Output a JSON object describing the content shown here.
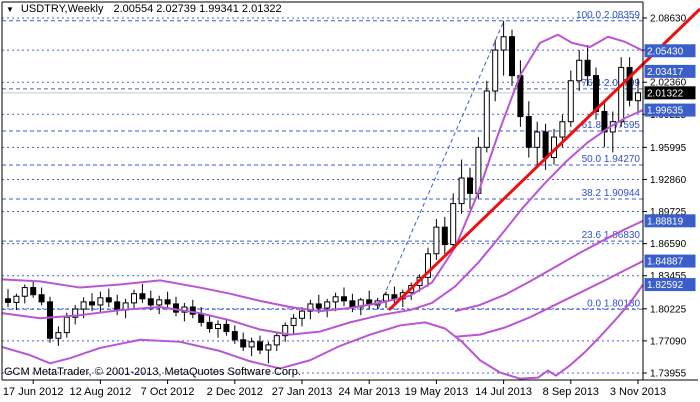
{
  "title": {
    "symbol_period": "USDTRY,Weekly",
    "ohlc": "2.00554 2.02739 1.99341 2.01322"
  },
  "watermark": "GCM MetaTrader, © 2001-2013, MetaQuotes Software Corp.",
  "colors": {
    "background": "#ffffff",
    "frame": "#000000",
    "grid": "#4466cc",
    "fib_line": "#3a5fd0",
    "fib_text": "#3050c8",
    "bands": "#ba55d3",
    "trendline": "#ee1010",
    "current_price_line": "#c8c8c8",
    "badge_blue": "#3a5fcb",
    "badge_black": "#000000",
    "candle_up_fill": "#ffffff",
    "candle_down_fill": "#000000",
    "candle_stroke": "#000000"
  },
  "chart_data": {
    "type": "candlestick",
    "symbol": "USDTRY",
    "period": "Weekly",
    "current_price": "2.01322",
    "y_ticks": [
      "2.08630",
      "2.05495",
      "2.02360",
      "1.99225",
      "1.95995",
      "1.92860",
      "1.89725",
      "1.86590",
      "1.83455",
      "1.80225",
      "1.77090",
      "1.73955"
    ],
    "x_ticks": [
      {
        "label": "17 Jun 2012",
        "i": 3
      },
      {
        "label": "12 Aug 2012",
        "i": 11
      },
      {
        "label": "7 Oct 2012",
        "i": 19
      },
      {
        "label": "2 Dec 2012",
        "i": 27
      },
      {
        "label": "27 Jan 2013",
        "i": 35
      },
      {
        "label": "24 Mar 2013",
        "i": 43
      },
      {
        "label": "19 May 2013",
        "i": 51
      },
      {
        "label": "14 Jul 2013",
        "i": 59
      },
      {
        "label": "8 Sep 2013",
        "i": 67
      },
      {
        "label": "3 Nov 2013",
        "i": 75
      }
    ],
    "axis_badges": [
      {
        "value": "2.05430",
        "bg": "blue"
      },
      {
        "value": "2.03417",
        "bg": "blue"
      },
      {
        "value": "2.01322",
        "bg": "black"
      },
      {
        "value": "1.99635",
        "bg": "blue"
      },
      {
        "value": "1.88819",
        "bg": "blue"
      },
      {
        "value": "1.84887",
        "bg": "blue"
      },
      {
        "value": "1.82592",
        "bg": "blue"
      }
    ],
    "fibonacci": [
      {
        "level": "100.0",
        "price": "2.08359"
      },
      {
        "level": "76.4",
        "price": "2.01709"
      },
      {
        "level": "61.8",
        "price": "1.97595"
      },
      {
        "level": "50.0",
        "price": "1.94270"
      },
      {
        "level": "38.2",
        "price": "1.90944"
      },
      {
        "level": "23.6",
        "price": "1.86830"
      },
      {
        "level": "0.0",
        "price": "1.80180"
      }
    ],
    "fib_baseline": {
      "from": [
        378,
        1.8018
      ],
      "to": [
        504,
        2.08359
      ]
    },
    "trendline": {
      "from": [
        389,
        1.8011
      ],
      "to": [
        700,
        2.0951
      ]
    },
    "candles": [
      [
        1.812,
        1.8215,
        1.804,
        1.8085
      ],
      [
        1.8085,
        1.817,
        1.801,
        1.8145
      ],
      [
        1.8145,
        1.826,
        1.8075,
        1.823
      ],
      [
        1.823,
        1.8295,
        1.813,
        1.816
      ],
      [
        1.816,
        1.823,
        1.8055,
        1.809
      ],
      [
        1.809,
        1.814,
        1.769,
        1.7735
      ],
      [
        1.7735,
        1.785,
        1.766,
        1.779
      ],
      [
        1.779,
        1.7985,
        1.774,
        1.794
      ],
      [
        1.794,
        1.806,
        1.787,
        1.802
      ],
      [
        1.802,
        1.8135,
        1.793,
        1.809
      ],
      [
        1.809,
        1.8175,
        1.8,
        1.806
      ],
      [
        1.806,
        1.819,
        1.798,
        1.813
      ],
      [
        1.813,
        1.822,
        1.804,
        1.809
      ],
      [
        1.809,
        1.816,
        1.796,
        1.801
      ],
      [
        1.801,
        1.812,
        1.793,
        1.808
      ],
      [
        1.808,
        1.821,
        1.802,
        1.817
      ],
      [
        1.817,
        1.8265,
        1.808,
        1.812
      ],
      [
        1.812,
        1.82,
        1.801,
        1.806
      ],
      [
        1.806,
        1.815,
        1.797,
        1.811
      ],
      [
        1.811,
        1.819,
        1.802,
        1.807
      ],
      [
        1.807,
        1.814,
        1.795,
        1.799
      ],
      [
        1.799,
        1.808,
        1.79,
        1.804
      ],
      [
        1.804,
        1.811,
        1.793,
        1.797
      ],
      [
        1.797,
        1.804,
        1.785,
        1.789
      ],
      [
        1.789,
        1.796,
        1.779,
        1.783
      ],
      [
        1.783,
        1.791,
        1.774,
        1.787
      ],
      [
        1.787,
        1.793,
        1.776,
        1.78
      ],
      [
        1.78,
        1.786,
        1.768,
        1.772
      ],
      [
        1.772,
        1.779,
        1.761,
        1.765
      ],
      [
        1.765,
        1.774,
        1.756,
        1.77
      ],
      [
        1.77,
        1.776,
        1.758,
        1.762
      ],
      [
        1.762,
        1.77,
        1.749,
        1.767
      ],
      [
        1.767,
        1.779,
        1.761,
        1.776
      ],
      [
        1.776,
        1.789,
        1.77,
        1.786
      ],
      [
        1.786,
        1.797,
        1.778,
        1.793
      ],
      [
        1.793,
        1.804,
        1.785,
        1.8
      ],
      [
        1.8,
        1.811,
        1.792,
        1.807
      ],
      [
        1.807,
        1.816,
        1.798,
        1.803
      ],
      [
        1.803,
        1.812,
        1.794,
        1.809
      ],
      [
        1.809,
        1.818,
        1.8,
        1.814
      ],
      [
        1.814,
        1.823,
        1.805,
        1.81
      ],
      [
        1.81,
        1.817,
        1.799,
        1.804
      ],
      [
        1.804,
        1.813,
        1.796,
        1.811
      ],
      [
        1.811,
        1.82,
        1.802,
        1.806
      ],
      [
        1.806,
        1.813,
        1.8018,
        1.81
      ],
      [
        1.81,
        1.819,
        1.803,
        1.816
      ],
      [
        1.816,
        1.824,
        1.808,
        1.812
      ],
      [
        1.812,
        1.821,
        1.804,
        1.818
      ],
      [
        1.818,
        1.828,
        1.811,
        1.825
      ],
      [
        1.825,
        1.836,
        1.819,
        1.833
      ],
      [
        1.833,
        1.862,
        1.824,
        1.856
      ],
      [
        1.856,
        1.89,
        1.85,
        1.882
      ],
      [
        1.882,
        1.892,
        1.856,
        1.865
      ],
      [
        1.865,
        1.915,
        1.86,
        1.905
      ],
      [
        1.905,
        1.948,
        1.895,
        1.93
      ],
      [
        1.93,
        1.94,
        1.9,
        1.915
      ],
      [
        1.915,
        1.97,
        1.91,
        1.96
      ],
      [
        1.96,
        2.025,
        1.955,
        2.015
      ],
      [
        2.015,
        2.065,
        2.005,
        2.055
      ],
      [
        2.055,
        2.08359,
        2.03,
        2.068
      ],
      [
        2.068,
        2.075,
        2.02,
        2.03
      ],
      [
        2.03,
        2.045,
        1.98,
        1.99
      ],
      [
        1.99,
        2.005,
        1.95,
        1.96
      ],
      [
        1.96,
        1.985,
        1.9427,
        1.975
      ],
      [
        1.975,
        1.983,
        1.938,
        1.95
      ],
      [
        1.95,
        1.978,
        1.943,
        1.97
      ],
      [
        1.97,
        1.992,
        1.96,
        1.985
      ],
      [
        1.985,
        2.035,
        1.98,
        2.025
      ],
      [
        2.025,
        2.055,
        2.015,
        2.045
      ],
      [
        2.045,
        2.06,
        2.02,
        2.03
      ],
      [
        2.03,
        2.038,
        1.987,
        1.995
      ],
      [
        1.995,
        2.005,
        1.96,
        1.975
      ],
      [
        1.975,
        1.995,
        1.955,
        1.985
      ],
      [
        1.985,
        2.048,
        1.98,
        2.038
      ],
      [
        2.038,
        2.048,
        2.0,
        2.006
      ],
      [
        2.00554,
        2.02739,
        1.99341,
        2.01322
      ]
    ],
    "bands": {
      "upper": [
        [
          2,
          1.831
        ],
        [
          40,
          1.829
        ],
        [
          80,
          1.823
        ],
        [
          120,
          1.826
        ],
        [
          160,
          1.83
        ],
        [
          200,
          1.823
        ],
        [
          230,
          1.817
        ],
        [
          260,
          1.81
        ],
        [
          290,
          1.804
        ],
        [
          320,
          1.8
        ],
        [
          350,
          1.803
        ],
        [
          380,
          1.808
        ],
        [
          410,
          1.815
        ],
        [
          432,
          1.828
        ],
        [
          455,
          1.862
        ],
        [
          478,
          1.915
        ],
        [
          500,
          1.978
        ],
        [
          520,
          2.03
        ],
        [
          540,
          2.062
        ],
        [
          558,
          2.07
        ],
        [
          572,
          2.062
        ],
        [
          590,
          2.058
        ],
        [
          608,
          2.068
        ],
        [
          625,
          2.063
        ],
        [
          643,
          2.0543
        ]
      ],
      "middle": [
        [
          2,
          1.798
        ],
        [
          40,
          1.793
        ],
        [
          80,
          1.796
        ],
        [
          120,
          1.801
        ],
        [
          160,
          1.804
        ],
        [
          200,
          1.798
        ],
        [
          230,
          1.791
        ],
        [
          260,
          1.782
        ],
        [
          290,
          1.777
        ],
        [
          320,
          1.78
        ],
        [
          350,
          1.789
        ],
        [
          380,
          1.796
        ],
        [
          410,
          1.801
        ],
        [
          432,
          1.808
        ],
        [
          455,
          1.824
        ],
        [
          478,
          1.847
        ],
        [
          500,
          1.873
        ],
        [
          522,
          1.9
        ],
        [
          544,
          1.924
        ],
        [
          566,
          1.946
        ],
        [
          588,
          1.965
        ],
        [
          610,
          1.98
        ],
        [
          626,
          1.989
        ],
        [
          643,
          1.99635
        ]
      ],
      "lower": [
        [
          2,
          1.765
        ],
        [
          30,
          1.757
        ],
        [
          50,
          1.749
        ],
        [
          70,
          1.754
        ],
        [
          100,
          1.764
        ],
        [
          140,
          1.772
        ],
        [
          180,
          1.77
        ],
        [
          220,
          1.761
        ],
        [
          250,
          1.751
        ],
        [
          280,
          1.744
        ],
        [
          310,
          1.752
        ],
        [
          340,
          1.766
        ],
        [
          370,
          1.777
        ],
        [
          400,
          1.786
        ],
        [
          425,
          1.789
        ],
        [
          445,
          1.783
        ],
        [
          462,
          1.77
        ],
        [
          480,
          1.752
        ],
        [
          500,
          1.74
        ],
        [
          520,
          1.734
        ],
        [
          538,
          1.735
        ],
        [
          548,
          1.742
        ],
        [
          556,
          1.737
        ],
        [
          570,
          1.747
        ],
        [
          585,
          1.76
        ],
        [
          600,
          1.775
        ],
        [
          615,
          1.791
        ],
        [
          630,
          1.808
        ],
        [
          643,
          1.82592
        ]
      ],
      "slow_upper": [
        [
          455,
          1.8
        ],
        [
          480,
          1.806
        ],
        [
          505,
          1.816
        ],
        [
          530,
          1.829
        ],
        [
          555,
          1.843
        ],
        [
          580,
          1.857
        ],
        [
          605,
          1.87
        ],
        [
          625,
          1.88
        ],
        [
          643,
          1.88819
        ]
      ],
      "slow_lower": [
        [
          455,
          1.775
        ],
        [
          480,
          1.777
        ],
        [
          505,
          1.784
        ],
        [
          530,
          1.794
        ],
        [
          555,
          1.806
        ],
        [
          580,
          1.818
        ],
        [
          605,
          1.83
        ],
        [
          625,
          1.84
        ],
        [
          643,
          1.84887
        ]
      ]
    }
  }
}
